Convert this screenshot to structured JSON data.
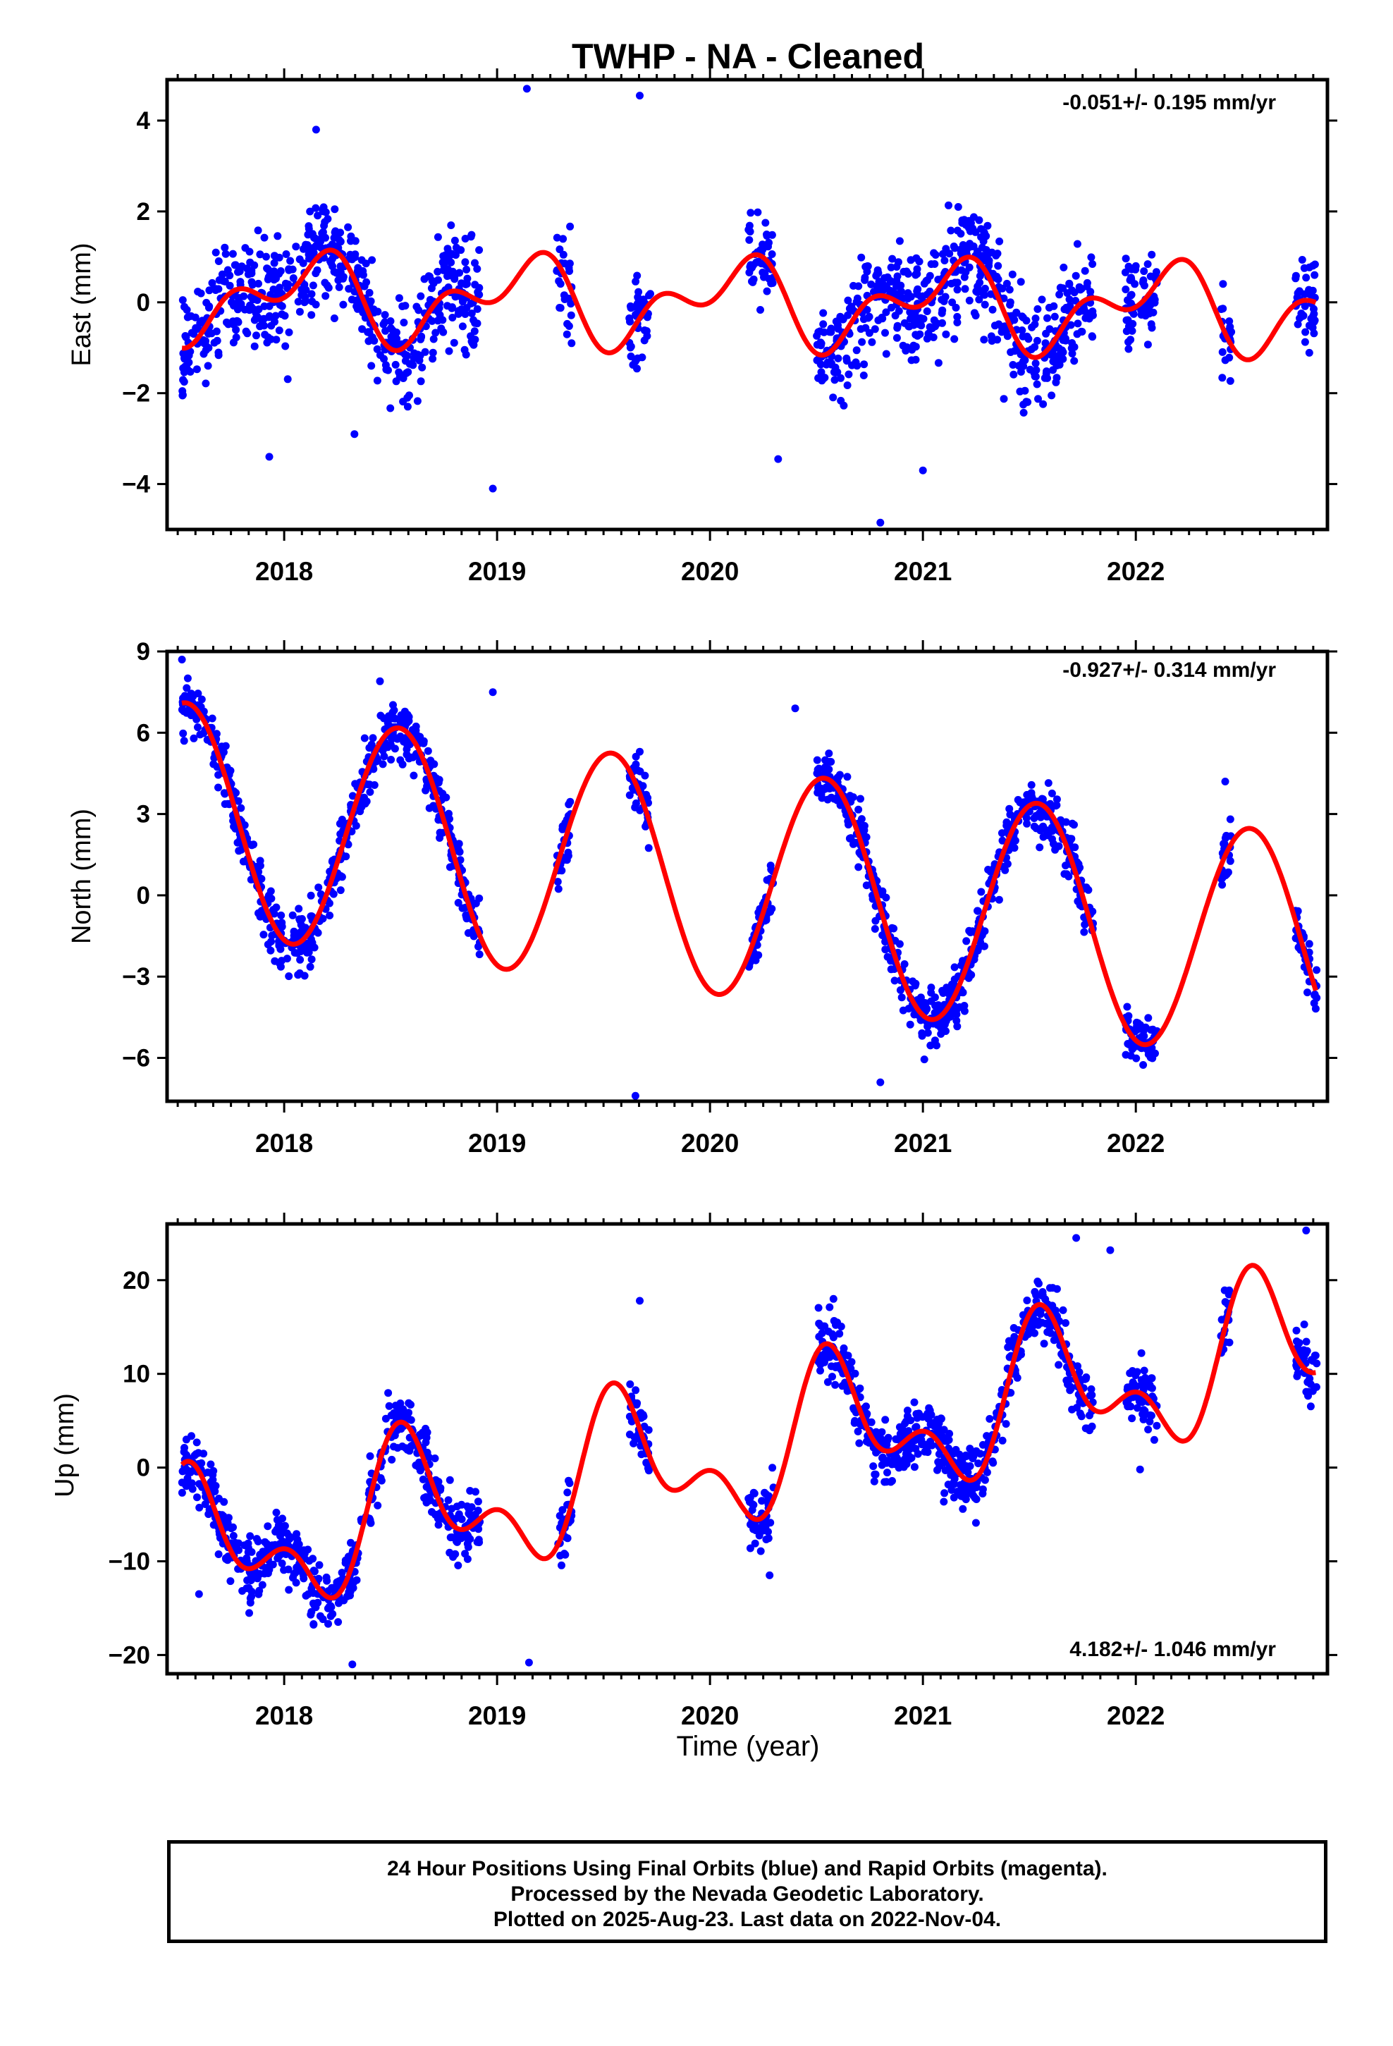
{
  "chart_data": {
    "type": "scatter",
    "title": "TWHP  - NA - Cleaned",
    "xlabel": "Time (year)",
    "x_ticks": [
      "2018",
      "2019",
      "2020",
      "2021",
      "2022"
    ],
    "xlim": [
      2017.45,
      2022.9
    ],
    "colors": {
      "points": "#0000ff",
      "model": "#ff0000",
      "axes": "#000000"
    },
    "grid": false,
    "panels": [
      {
        "ylabel": "East (mm)",
        "ylim": [
          -5.0,
          4.9
        ],
        "yticks": [
          -4,
          -2,
          0,
          2,
          4
        ],
        "rate_label": "-0.051+/- 0.195 mm/yr",
        "rate_position": "top-right",
        "model": {
          "offset": 0.0,
          "annual_sin": 0.45,
          "annual_cos": 0.55,
          "semiannual_sin": 0.0,
          "semiannual_cos": -0.55,
          "trend": -0.051,
          "epoch": 2020.0
        },
        "series": [
          {
            "name": "",
            "type": "scatter",
            "segments": [
              [
                2017.52,
                2018.44,
                1.55
              ],
              [
                2018.45,
                2018.92,
                1.55
              ],
              [
                2019.28,
                2019.35,
                1.3
              ],
              [
                2019.62,
                2019.72,
                1.3
              ],
              [
                2020.18,
                2020.3,
                1.3
              ],
              [
                2020.5,
                2020.6,
                1.3
              ],
              [
                2020.6,
                2021.0,
                1.55
              ],
              [
                2021.0,
                2021.62,
                1.55
              ],
              [
                2021.62,
                2021.8,
                1.5
              ],
              [
                2021.95,
                2022.1,
                1.3
              ],
              [
                2022.4,
                2022.45,
                1.3
              ],
              [
                2022.75,
                2022.85,
                1.3
              ]
            ],
            "outliers": [
              [
                2018.15,
                3.8
              ],
              [
                2019.14,
                4.7
              ],
              [
                2019.67,
                4.55
              ],
              [
                2018.98,
                -4.1
              ],
              [
                2017.93,
                -3.4
              ],
              [
                2020.8,
                -4.85
              ],
              [
                2021.0,
                -3.7
              ],
              [
                2020.32,
                -3.45
              ],
              [
                2018.33,
                -2.9
              ]
            ]
          }
        ]
      },
      {
        "ylabel": "North (mm)",
        "ylim": [
          -7.6,
          9.0
        ],
        "yticks": [
          -6,
          -3,
          0,
          3,
          6,
          9
        ],
        "rate_label": "-0.927+/- 0.314 mm/yr",
        "rate_position": "top-right",
        "model": {
          "offset": 0.6,
          "annual_sin": -1.0,
          "annual_cos": -4.1,
          "semiannual_sin": 0.0,
          "semiannual_cos": 0.0,
          "trend": -0.927,
          "epoch": 2020.0
        },
        "series": [
          {
            "name": "",
            "type": "scatter",
            "segments": [
              [
                2017.52,
                2018.44,
                1.4
              ],
              [
                2018.45,
                2018.92,
                1.4
              ],
              [
                2019.28,
                2019.35,
                1.2
              ],
              [
                2019.62,
                2019.72,
                1.2
              ],
              [
                2020.18,
                2020.3,
                1.2
              ],
              [
                2020.5,
                2020.6,
                1.2
              ],
              [
                2020.6,
                2021.0,
                1.4
              ],
              [
                2021.0,
                2021.62,
                1.4
              ],
              [
                2021.62,
                2021.8,
                1.3
              ],
              [
                2021.95,
                2022.1,
                1.2
              ],
              [
                2022.4,
                2022.45,
                1.2
              ],
              [
                2022.75,
                2022.85,
                1.2
              ]
            ],
            "outliers": [
              [
                2017.52,
                8.7
              ],
              [
                2018.98,
                7.5
              ],
              [
                2018.45,
                7.9
              ],
              [
                2020.4,
                6.9
              ],
              [
                2019.65,
                -7.4
              ],
              [
                2020.8,
                -6.9
              ],
              [
                2019.67,
                5.3
              ],
              [
                2022.42,
                4.2
              ]
            ]
          }
        ]
      },
      {
        "ylabel": "Up (mm)",
        "ylim": [
          -22.0,
          26.0
        ],
        "yticks": [
          -20,
          -10,
          0,
          10,
          20
        ],
        "rate_label": "4.182+/- 1.046 mm/yr",
        "rate_position": "bottom-right",
        "model": {
          "offset": 1.0,
          "annual_sin": -3.4,
          "annual_cos": -5.2,
          "semiannual_sin": 1.3,
          "semiannual_cos": 3.9,
          "trend": 4.182,
          "epoch": 2020.0
        },
        "series": [
          {
            "name": "",
            "type": "scatter",
            "segments": [
              [
                2017.52,
                2018.44,
                4.5
              ],
              [
                2018.45,
                2018.92,
                4.5
              ],
              [
                2019.28,
                2019.35,
                4.0
              ],
              [
                2019.62,
                2019.72,
                4.0
              ],
              [
                2020.18,
                2020.3,
                4.0
              ],
              [
                2020.5,
                2020.6,
                4.0
              ],
              [
                2020.6,
                2021.0,
                4.5
              ],
              [
                2021.0,
                2021.62,
                4.5
              ],
              [
                2021.62,
                2021.8,
                4.2
              ],
              [
                2021.95,
                2022.1,
                4.0
              ],
              [
                2022.4,
                2022.45,
                4.0
              ],
              [
                2022.75,
                2022.85,
                4.0
              ]
            ],
            "outliers": [
              [
                2019.67,
                17.8
              ],
              [
                2020.58,
                18.0
              ],
              [
                2021.72,
                24.5
              ],
              [
                2022.8,
                25.3
              ],
              [
                2018.32,
                -21.0
              ],
              [
                2019.15,
                -20.8
              ],
              [
                2017.6,
                -13.5
              ],
              [
                2020.28,
                -11.5
              ],
              [
                2022.02,
                -0.2
              ],
              [
                2021.88,
                23.2
              ]
            ]
          }
        ]
      }
    ]
  },
  "footer": {
    "line1": "24 Hour Positions Using Final Orbits (blue) and Rapid Orbits (magenta).",
    "line2": "Processed by the Nevada Geodetic Laboratory.",
    "line3": "Plotted on 2025-Aug-23. Last data on 2022-Nov-04."
  }
}
